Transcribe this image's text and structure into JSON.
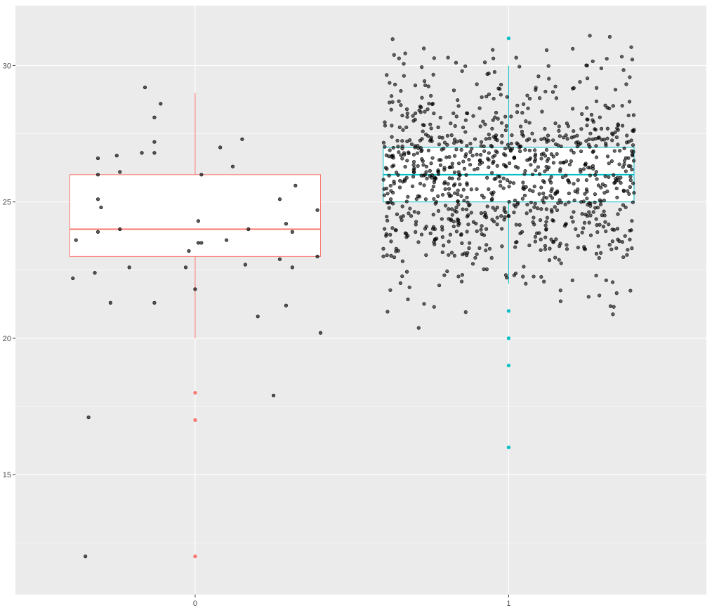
{
  "chart_data": {
    "type": "box",
    "title": "",
    "xlabel": "",
    "ylabel": "",
    "categories": [
      "0",
      "1"
    ],
    "ylim": [
      10.6,
      32.2
    ],
    "y_ticks": [
      15,
      20,
      25,
      30
    ],
    "grid": true,
    "legend": "none",
    "colors": {
      "0": "#F8766D",
      "1": "#00BFC4",
      "points": "#000000",
      "panel": "#EBEBEB",
      "grid": "#FFFFFF",
      "box_fill": "#FFFFFF"
    },
    "boxes": [
      {
        "category": "0",
        "min": 20,
        "q1": 23,
        "median": 24,
        "q3": 26,
        "max": 29,
        "outliers": [
          18,
          17,
          12
        ]
      },
      {
        "category": "1",
        "min": 22,
        "q1": 25,
        "median": 26,
        "q3": 27,
        "max": 30,
        "outliers": [
          31,
          21,
          20,
          19,
          16
        ]
      }
    ],
    "jitter_points_group0": [
      [
        -0.39,
        22.2
      ],
      [
        -0.38,
        23.6
      ],
      [
        -0.35,
        12.0
      ],
      [
        -0.34,
        17.1
      ],
      [
        -0.32,
        22.4
      ],
      [
        -0.31,
        23.9
      ],
      [
        -0.31,
        26.0
      ],
      [
        -0.31,
        26.6
      ],
      [
        -0.31,
        25.1
      ],
      [
        -0.3,
        24.8
      ],
      [
        -0.27,
        21.3
      ],
      [
        -0.25,
        26.7
      ],
      [
        -0.24,
        24.0
      ],
      [
        -0.24,
        26.1
      ],
      [
        -0.21,
        22.6
      ],
      [
        -0.17,
        26.8
      ],
      [
        -0.16,
        29.2
      ],
      [
        -0.13,
        28.1
      ],
      [
        -0.13,
        21.3
      ],
      [
        -0.13,
        27.2
      ],
      [
        -0.13,
        26.8
      ],
      [
        -0.11,
        28.6
      ],
      [
        -0.03,
        22.6
      ],
      [
        -0.02,
        23.2
      ],
      [
        0.0,
        21.8
      ],
      [
        0.01,
        23.5
      ],
      [
        0.01,
        24.3
      ],
      [
        0.02,
        23.5
      ],
      [
        0.02,
        26.0
      ],
      [
        0.08,
        27.0
      ],
      [
        0.1,
        23.6
      ],
      [
        0.12,
        26.3
      ],
      [
        0.15,
        27.3
      ],
      [
        0.16,
        22.7
      ],
      [
        0.17,
        24.0
      ],
      [
        0.2,
        20.8
      ],
      [
        0.25,
        17.9
      ],
      [
        0.27,
        22.9
      ],
      [
        0.27,
        25.1
      ],
      [
        0.29,
        21.2
      ],
      [
        0.29,
        24.2
      ],
      [
        0.31,
        23.9
      ],
      [
        0.31,
        22.6
      ],
      [
        0.32,
        25.6
      ],
      [
        0.39,
        23.0
      ],
      [
        0.39,
        24.7
      ],
      [
        0.4,
        20.2
      ]
    ],
    "jitter_points_group1_count": 1000
  }
}
